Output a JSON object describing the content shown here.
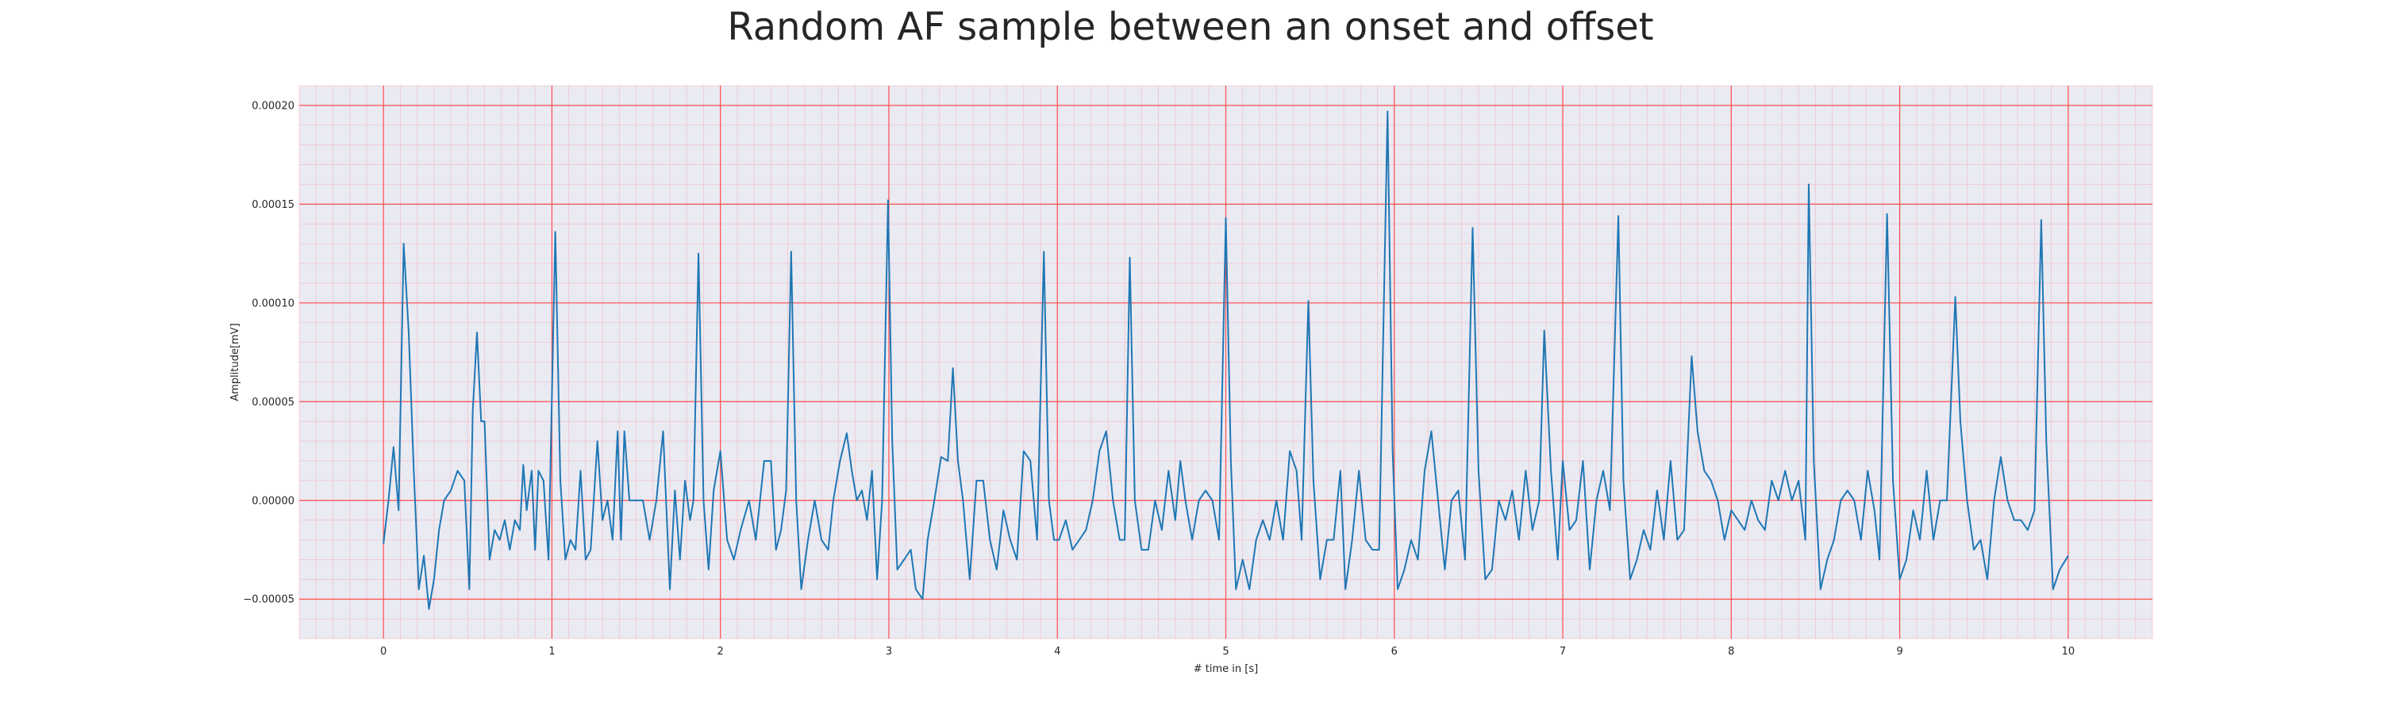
{
  "chart_data": {
    "type": "line",
    "title": "Random AF sample between an onset and offset",
    "xlabel": "# time in [s]",
    "ylabel": "Amplitude[mV]",
    "xlim": [
      -0.5,
      10.5
    ],
    "ylim": [
      -7e-05,
      0.00021
    ],
    "x_ticks": [
      0,
      1,
      2,
      3,
      4,
      5,
      6,
      7,
      8,
      9,
      10
    ],
    "x_tick_labels": [
      "0",
      "1",
      "2",
      "3",
      "4",
      "5",
      "6",
      "7",
      "8",
      "9",
      "10"
    ],
    "y_ticks": [
      -5e-05,
      0.0,
      5e-05,
      0.0001,
      0.00015,
      0.0002
    ],
    "y_tick_labels": [
      "−0.00005",
      "0.00000",
      "0.00005",
      "0.00010",
      "0.00015",
      "0.00020"
    ],
    "grid": true,
    "legend": "none",
    "series": [
      {
        "color": "#1f77b4",
        "points": [
          [
            0.0,
            -2.2e-05
          ],
          [
            0.03,
            0.0
          ],
          [
            0.06,
            2.7e-05
          ],
          [
            0.09,
            -5e-06
          ],
          [
            0.12,
            0.00013
          ],
          [
            0.15,
            8.5e-05
          ],
          [
            0.18,
            1.5e-05
          ],
          [
            0.21,
            -4.5e-05
          ],
          [
            0.24,
            -2.8e-05
          ],
          [
            0.27,
            -5.5e-05
          ],
          [
            0.3,
            -4e-05
          ],
          [
            0.33,
            -1.5e-05
          ],
          [
            0.36,
            0.0
          ],
          [
            0.4,
            5e-06
          ],
          [
            0.44,
            1.5e-05
          ],
          [
            0.48,
            1e-05
          ],
          [
            0.51,
            -4.5e-05
          ],
          [
            0.53,
            4.5e-05
          ],
          [
            0.555,
            8.5e-05
          ],
          [
            0.58,
            4e-05
          ],
          [
            0.6,
            4e-05
          ],
          [
            0.63,
            -3e-05
          ],
          [
            0.66,
            -1.5e-05
          ],
          [
            0.69,
            -2e-05
          ],
          [
            0.72,
            -1e-05
          ],
          [
            0.75,
            -2.5e-05
          ],
          [
            0.78,
            -1e-05
          ],
          [
            0.81,
            -1.5e-05
          ],
          [
            0.83,
            1.8e-05
          ],
          [
            0.85,
            -5e-06
          ],
          [
            0.88,
            1.5e-05
          ],
          [
            0.9,
            -2.5e-05
          ],
          [
            0.92,
            1.5e-05
          ],
          [
            0.95,
            1e-05
          ],
          [
            0.98,
            -3e-05
          ],
          [
            1.02,
            0.000136
          ],
          [
            1.05,
            1e-05
          ],
          [
            1.08,
            -3e-05
          ],
          [
            1.11,
            -2e-05
          ],
          [
            1.14,
            -2.5e-05
          ],
          [
            1.17,
            1.5e-05
          ],
          [
            1.2,
            -3e-05
          ],
          [
            1.23,
            -2.5e-05
          ],
          [
            1.27,
            3e-05
          ],
          [
            1.3,
            -1e-05
          ],
          [
            1.33,
            0.0
          ],
          [
            1.36,
            -2e-05
          ],
          [
            1.39,
            3.5e-05
          ],
          [
            1.41,
            -2e-05
          ],
          [
            1.43,
            3.5e-05
          ],
          [
            1.46,
            0.0
          ],
          [
            1.5,
            0.0
          ],
          [
            1.54,
            0.0
          ],
          [
            1.58,
            -2e-05
          ],
          [
            1.62,
            0.0
          ],
          [
            1.66,
            3.5e-05
          ],
          [
            1.7,
            -4.5e-05
          ],
          [
            1.73,
            5e-06
          ],
          [
            1.76,
            -3e-05
          ],
          [
            1.79,
            1e-05
          ],
          [
            1.82,
            -1e-05
          ],
          [
            1.84,
            0.0
          ],
          [
            1.87,
            0.000125
          ],
          [
            1.9,
            0.0
          ],
          [
            1.93,
            -3.5e-05
          ],
          [
            1.96,
            5e-06
          ],
          [
            2.0,
            2.5e-05
          ],
          [
            2.04,
            -2e-05
          ],
          [
            2.08,
            -3e-05
          ],
          [
            2.12,
            -1.5e-05
          ],
          [
            2.17,
            0.0
          ],
          [
            2.21,
            -2e-05
          ],
          [
            2.26,
            2e-05
          ],
          [
            2.3,
            2e-05
          ],
          [
            2.33,
            -2.5e-05
          ],
          [
            2.36,
            -1.5e-05
          ],
          [
            2.39,
            5e-06
          ],
          [
            2.42,
            0.000126
          ],
          [
            2.45,
            0.0
          ],
          [
            2.48,
            -4.5e-05
          ],
          [
            2.52,
            -2e-05
          ],
          [
            2.56,
            0.0
          ],
          [
            2.6,
            -2e-05
          ],
          [
            2.64,
            -2.5e-05
          ],
          [
            2.67,
            0.0
          ],
          [
            2.71,
            2e-05
          ],
          [
            2.75,
            3.4e-05
          ],
          [
            2.78,
            1.5e-05
          ],
          [
            2.81,
            0.0
          ],
          [
            2.84,
            5e-06
          ],
          [
            2.87,
            -1e-05
          ],
          [
            2.9,
            1.5e-05
          ],
          [
            2.93,
            -4e-05
          ],
          [
            2.96,
            0.0
          ],
          [
            2.995,
            0.000152
          ],
          [
            3.02,
            3e-05
          ],
          [
            3.05,
            -3.5e-05
          ],
          [
            3.09,
            -3e-05
          ],
          [
            3.13,
            -2.5e-05
          ],
          [
            3.16,
            -4.5e-05
          ],
          [
            3.2,
            -5e-05
          ],
          [
            3.23,
            -2e-05
          ],
          [
            3.27,
            0.0
          ],
          [
            3.31,
            2.2e-05
          ],
          [
            3.35,
            2e-05
          ],
          [
            3.38,
            6.7e-05
          ],
          [
            3.41,
            2e-05
          ],
          [
            3.44,
            0.0
          ],
          [
            3.48,
            -4e-05
          ],
          [
            3.52,
            1e-05
          ],
          [
            3.56,
            1e-05
          ],
          [
            3.6,
            -2e-05
          ],
          [
            3.64,
            -3.5e-05
          ],
          [
            3.68,
            -5e-06
          ],
          [
            3.72,
            -2e-05
          ],
          [
            3.76,
            -3e-05
          ],
          [
            3.8,
            2.5e-05
          ],
          [
            3.84,
            2e-05
          ],
          [
            3.88,
            -2e-05
          ],
          [
            3.92,
            0.000126
          ],
          [
            3.95,
            0.0
          ],
          [
            3.98,
            -2e-05
          ],
          [
            4.01,
            -2e-05
          ],
          [
            4.05,
            -1e-05
          ],
          [
            4.09,
            -2.5e-05
          ],
          [
            4.13,
            -2e-05
          ],
          [
            4.17,
            -1.5e-05
          ],
          [
            4.21,
            0.0
          ],
          [
            4.25,
            2.5e-05
          ],
          [
            4.29,
            3.5e-05
          ],
          [
            4.33,
            0.0
          ],
          [
            4.37,
            -2e-05
          ],
          [
            4.4,
            -2e-05
          ],
          [
            4.43,
            0.000123
          ],
          [
            4.46,
            0.0
          ],
          [
            4.5,
            -2.5e-05
          ],
          [
            4.54,
            -2.5e-05
          ],
          [
            4.58,
            0.0
          ],
          [
            4.62,
            -1.5e-05
          ],
          [
            4.66,
            1.5e-05
          ],
          [
            4.7,
            -1e-05
          ],
          [
            4.73,
            2e-05
          ],
          [
            4.76,
            0.0
          ],
          [
            4.8,
            -2e-05
          ],
          [
            4.84,
            0.0
          ],
          [
            4.88,
            5e-06
          ],
          [
            4.92,
            0.0
          ],
          [
            4.96,
            -2e-05
          ],
          [
            5.0,
            0.000143
          ],
          [
            5.03,
            2e-05
          ],
          [
            5.06,
            -4.5e-05
          ],
          [
            5.1,
            -3e-05
          ],
          [
            5.14,
            -4.5e-05
          ],
          [
            5.18,
            -2e-05
          ],
          [
            5.22,
            -1e-05
          ],
          [
            5.26,
            -2e-05
          ],
          [
            5.3,
            0.0
          ],
          [
            5.34,
            -2e-05
          ],
          [
            5.38,
            2.5e-05
          ],
          [
            5.42,
            1.5e-05
          ],
          [
            5.45,
            -2e-05
          ],
          [
            5.49,
            0.000101
          ],
          [
            5.52,
            1e-05
          ],
          [
            5.56,
            -4e-05
          ],
          [
            5.6,
            -2e-05
          ],
          [
            5.64,
            -2e-05
          ],
          [
            5.68,
            1.5e-05
          ],
          [
            5.71,
            -4.5e-05
          ],
          [
            5.75,
            -2e-05
          ],
          [
            5.79,
            1.5e-05
          ],
          [
            5.83,
            -2e-05
          ],
          [
            5.87,
            -2.5e-05
          ],
          [
            5.91,
            -2.5e-05
          ],
          [
            5.96,
            0.000197
          ],
          [
            5.99,
            2.5e-05
          ],
          [
            6.02,
            -4.5e-05
          ],
          [
            6.06,
            -3.5e-05
          ],
          [
            6.1,
            -2e-05
          ],
          [
            6.14,
            -3e-05
          ],
          [
            6.18,
            1.5e-05
          ],
          [
            6.22,
            3.5e-05
          ],
          [
            6.26,
            0.0
          ],
          [
            6.3,
            -3.5e-05
          ],
          [
            6.34,
            0.0
          ],
          [
            6.38,
            5e-06
          ],
          [
            6.42,
            -3e-05
          ],
          [
            6.465,
            0.000138
          ],
          [
            6.5,
            1.5e-05
          ],
          [
            6.54,
            -4e-05
          ],
          [
            6.58,
            -3.5e-05
          ],
          [
            6.62,
            0.0
          ],
          [
            6.66,
            -1e-05
          ],
          [
            6.7,
            5e-06
          ],
          [
            6.74,
            -2e-05
          ],
          [
            6.78,
            1.5e-05
          ],
          [
            6.82,
            -1.5e-05
          ],
          [
            6.86,
            0.0
          ],
          [
            6.89,
            8.6e-05
          ],
          [
            6.93,
            1.5e-05
          ],
          [
            6.97,
            -3e-05
          ],
          [
            7.0,
            2e-05
          ],
          [
            7.04,
            -1.5e-05
          ],
          [
            7.08,
            -1e-05
          ],
          [
            7.12,
            2e-05
          ],
          [
            7.16,
            -3.5e-05
          ],
          [
            7.2,
            0.0
          ],
          [
            7.24,
            1.5e-05
          ],
          [
            7.28,
            -5e-06
          ],
          [
            7.33,
            0.000144
          ],
          [
            7.36,
            1e-05
          ],
          [
            7.4,
            -4e-05
          ],
          [
            7.44,
            -3e-05
          ],
          [
            7.48,
            -1.5e-05
          ],
          [
            7.52,
            -2.5e-05
          ],
          [
            7.56,
            5e-06
          ],
          [
            7.6,
            -2e-05
          ],
          [
            7.64,
            2e-05
          ],
          [
            7.68,
            -2e-05
          ],
          [
            7.72,
            -1.5e-05
          ],
          [
            7.765,
            7.3e-05
          ],
          [
            7.8,
            3.5e-05
          ],
          [
            7.84,
            1.5e-05
          ],
          [
            7.88,
            1e-05
          ],
          [
            7.92,
            0.0
          ],
          [
            7.96,
            -2e-05
          ],
          [
            8.0,
            -5e-06
          ],
          [
            8.04,
            -1e-05
          ],
          [
            8.08,
            -1.5e-05
          ],
          [
            8.12,
            0.0
          ],
          [
            8.16,
            -1e-05
          ],
          [
            8.2,
            -1.5e-05
          ],
          [
            8.24,
            1e-05
          ],
          [
            8.28,
            0.0
          ],
          [
            8.32,
            1.5e-05
          ],
          [
            8.36,
            0.0
          ],
          [
            8.4,
            1e-05
          ],
          [
            8.44,
            -2e-05
          ],
          [
            8.46,
            0.00016
          ],
          [
            8.49,
            2e-05
          ],
          [
            8.53,
            -4.5e-05
          ],
          [
            8.57,
            -3e-05
          ],
          [
            8.61,
            -2e-05
          ],
          [
            8.65,
            0.0
          ],
          [
            8.69,
            5e-06
          ],
          [
            8.73,
            0.0
          ],
          [
            8.77,
            -2e-05
          ],
          [
            8.81,
            1.5e-05
          ],
          [
            8.85,
            -5e-06
          ],
          [
            8.88,
            -3e-05
          ],
          [
            8.925,
            0.000145
          ],
          [
            8.96,
            1e-05
          ],
          [
            9.0,
            -4e-05
          ],
          [
            9.04,
            -3e-05
          ],
          [
            9.08,
            -5e-06
          ],
          [
            9.12,
            -2e-05
          ],
          [
            9.16,
            1.5e-05
          ],
          [
            9.2,
            -2e-05
          ],
          [
            9.24,
            0.0
          ],
          [
            9.28,
            0.0
          ],
          [
            9.33,
            0.000103
          ],
          [
            9.36,
            4e-05
          ],
          [
            9.4,
            0.0
          ],
          [
            9.44,
            -2.5e-05
          ],
          [
            9.48,
            -2e-05
          ],
          [
            9.52,
            -4e-05
          ],
          [
            9.56,
            0.0
          ],
          [
            9.6,
            2.2e-05
          ],
          [
            9.64,
            0.0
          ],
          [
            9.68,
            -1e-05
          ],
          [
            9.72,
            -1e-05
          ],
          [
            9.76,
            -1.5e-05
          ],
          [
            9.8,
            -5e-06
          ],
          [
            9.84,
            0.000142
          ],
          [
            9.87,
            3e-05
          ],
          [
            9.91,
            -4.5e-05
          ],
          [
            9.95,
            -3.5e-05
          ],
          [
            10.0,
            -2.8e-05
          ]
        ]
      }
    ]
  }
}
